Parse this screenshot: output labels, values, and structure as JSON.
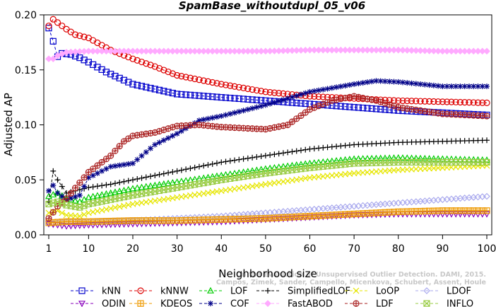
{
  "chart_data": {
    "type": "line",
    "title": "SpamBase_withoutdupl_05_v06",
    "xlabel": "Neighborhood size",
    "ylabel": "Adjusted AP",
    "xlim": [
      1,
      100
    ],
    "ylim": [
      0,
      0.2
    ],
    "xticks": [
      1,
      10,
      20,
      30,
      40,
      50,
      60,
      70,
      80,
      90,
      100
    ],
    "yticks": [
      0.0,
      0.05,
      0.1,
      0.15,
      0.2
    ],
    "ytick_labels": [
      "0.00",
      "0.05",
      "0.10",
      "0.15",
      "0.20"
    ],
    "grid": false,
    "legend_placement": "bottom",
    "watermark": [
      "Campos, Zimek, Sander, Campello, Micenkova, Schubert, Assent, Houle",
      "On the Evaluation of Unsupervised Outlier Detection. DAMI, 2015."
    ],
    "series": [
      {
        "name": "kNN",
        "color": "#0000cc",
        "marker": "square",
        "x": [
          1,
          2,
          3,
          4,
          6,
          8,
          10,
          14,
          20,
          30,
          40,
          50,
          60,
          70,
          80,
          90,
          100
        ],
        "y": [
          0.188,
          0.176,
          0.162,
          0.165,
          0.164,
          0.161,
          0.157,
          0.148,
          0.137,
          0.128,
          0.125,
          0.122,
          0.119,
          0.116,
          0.113,
          0.111,
          0.109
        ]
      },
      {
        "name": "kNNW",
        "color": "#dd0000",
        "marker": "circle",
        "x": [
          1,
          2,
          3,
          5,
          7,
          10,
          15,
          20,
          25,
          30,
          40,
          50,
          60,
          70,
          80,
          90,
          100
        ],
        "y": [
          0.19,
          0.196,
          0.193,
          0.187,
          0.182,
          0.179,
          0.168,
          0.16,
          0.153,
          0.145,
          0.137,
          0.13,
          0.126,
          0.124,
          0.122,
          0.121,
          0.12
        ]
      },
      {
        "name": "LOF",
        "color": "#00cc00",
        "marker": "triangle-up",
        "x": [
          1,
          3,
          5,
          8,
          10,
          15,
          20,
          30,
          40,
          50,
          60,
          70,
          80,
          90,
          100
        ],
        "y": [
          0.035,
          0.038,
          0.033,
          0.03,
          0.034,
          0.038,
          0.042,
          0.048,
          0.054,
          0.06,
          0.065,
          0.069,
          0.07,
          0.069,
          0.068
        ]
      },
      {
        "name": "SimplifiedLOF",
        "color": "#000000",
        "marker": "plus",
        "x": [
          1,
          2,
          3,
          4,
          5,
          7,
          10,
          15,
          20,
          30,
          40,
          50,
          60,
          70,
          80,
          90,
          100
        ],
        "y": [
          0.03,
          0.058,
          0.05,
          0.044,
          0.038,
          0.04,
          0.043,
          0.046,
          0.05,
          0.058,
          0.066,
          0.072,
          0.078,
          0.082,
          0.084,
          0.085,
          0.086
        ]
      },
      {
        "name": "LoOP",
        "color": "#e6e600",
        "marker": "x",
        "x": [
          1,
          3,
          5,
          8,
          10,
          15,
          20,
          30,
          40,
          50,
          60,
          70,
          80,
          90,
          100
        ],
        "y": [
          0.02,
          0.022,
          0.018,
          0.017,
          0.02,
          0.024,
          0.028,
          0.034,
          0.04,
          0.046,
          0.052,
          0.056,
          0.059,
          0.061,
          0.063
        ]
      },
      {
        "name": "LDOF",
        "color": "#aaaaee",
        "marker": "diamond",
        "x": [
          1,
          5,
          10,
          20,
          30,
          40,
          50,
          60,
          70,
          80,
          90,
          100
        ],
        "y": [
          0.01,
          0.012,
          0.012,
          0.013,
          0.015,
          0.017,
          0.02,
          0.023,
          0.026,
          0.029,
          0.032,
          0.035
        ]
      },
      {
        "name": "ODIN",
        "color": "#8800bb",
        "marker": "triangle-down",
        "x": [
          1,
          3,
          5,
          10,
          20,
          30,
          40,
          50,
          60,
          70,
          80,
          90,
          100
        ],
        "y": [
          0.01,
          0.009,
          0.008,
          0.009,
          0.01,
          0.011,
          0.012,
          0.014,
          0.016,
          0.018,
          0.019,
          0.019,
          0.019
        ]
      },
      {
        "name": "KDEOS",
        "color": "#ee9900",
        "marker": "asterisk-square",
        "x": [
          1,
          5,
          10,
          20,
          30,
          40,
          50,
          60,
          70,
          80,
          90,
          100
        ],
        "y": [
          0.011,
          0.012,
          0.012,
          0.013,
          0.013,
          0.014,
          0.015,
          0.017,
          0.019,
          0.021,
          0.022,
          0.022
        ]
      },
      {
        "name": "COF",
        "color": "#000088",
        "marker": "asterisk",
        "x": [
          1,
          2,
          3,
          5,
          8,
          10,
          15,
          20,
          25,
          30,
          35,
          40,
          50,
          60,
          70,
          75,
          80,
          90,
          100
        ],
        "y": [
          0.04,
          0.045,
          0.038,
          0.032,
          0.036,
          0.052,
          0.062,
          0.065,
          0.082,
          0.092,
          0.104,
          0.108,
          0.118,
          0.13,
          0.137,
          0.14,
          0.139,
          0.135,
          0.135
        ]
      },
      {
        "name": "FastABOD",
        "color": "#ffaaff",
        "marker": "diamond-filled",
        "x": [
          1,
          2,
          3,
          5,
          10,
          20,
          30,
          40,
          50,
          60,
          70,
          80,
          90,
          100
        ],
        "y": [
          0.16,
          0.16,
          0.163,
          0.166,
          0.167,
          0.167,
          0.167,
          0.167,
          0.167,
          0.168,
          0.168,
          0.168,
          0.167,
          0.167
        ]
      },
      {
        "name": "LDF",
        "color": "#aa2222",
        "marker": "circle-plus",
        "x": [
          1,
          3,
          5,
          10,
          15,
          18,
          20,
          25,
          30,
          35,
          40,
          45,
          50,
          55,
          60,
          65,
          70,
          75,
          80,
          90,
          100
        ],
        "y": [
          0.015,
          0.026,
          0.033,
          0.057,
          0.072,
          0.085,
          0.09,
          0.093,
          0.099,
          0.1,
          0.098,
          0.097,
          0.096,
          0.1,
          0.114,
          0.122,
          0.126,
          0.122,
          0.116,
          0.11,
          0.108
        ]
      },
      {
        "name": "INFLO",
        "color": "#99cc44",
        "marker": "x-square",
        "x": [
          1,
          3,
          5,
          8,
          10,
          15,
          20,
          30,
          40,
          50,
          60,
          70,
          80,
          90,
          100
        ],
        "y": [
          0.028,
          0.03,
          0.027,
          0.025,
          0.028,
          0.032,
          0.036,
          0.043,
          0.05,
          0.056,
          0.061,
          0.065,
          0.066,
          0.066,
          0.066
        ]
      }
    ]
  }
}
